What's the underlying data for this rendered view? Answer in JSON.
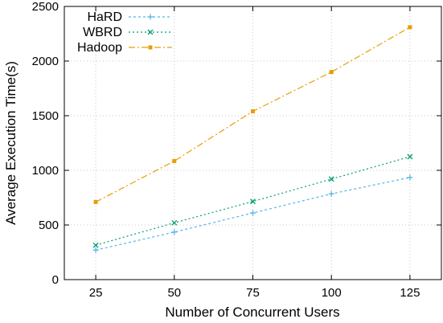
{
  "chart_data": {
    "type": "line",
    "xlabel": "Number of Concurrent Users",
    "ylabel": "Average Execution Time(s)",
    "x": [
      25,
      50,
      75,
      100,
      125
    ],
    "xticks": [
      25,
      50,
      75,
      100,
      125
    ],
    "yticks": [
      0,
      500,
      1000,
      1500,
      2000,
      2500
    ],
    "xlim": [
      15,
      135
    ],
    "ylim": [
      0,
      2500
    ],
    "grid": true,
    "legend_position": "top-left",
    "series": [
      {
        "name": "HaRD",
        "values": [
          270,
          435,
          610,
          785,
          935
        ],
        "color": "#56b4e9",
        "marker": "plus",
        "dash": "3 3"
      },
      {
        "name": "WBRD",
        "values": [
          315,
          520,
          715,
          920,
          1125
        ],
        "color": "#009e73",
        "marker": "cross",
        "dash": "2 3"
      },
      {
        "name": "Hadoop",
        "values": [
          710,
          1085,
          1540,
          1900,
          2310
        ],
        "color": "#e69f00",
        "marker": "square",
        "dash": "8 3 2 3"
      }
    ]
  }
}
